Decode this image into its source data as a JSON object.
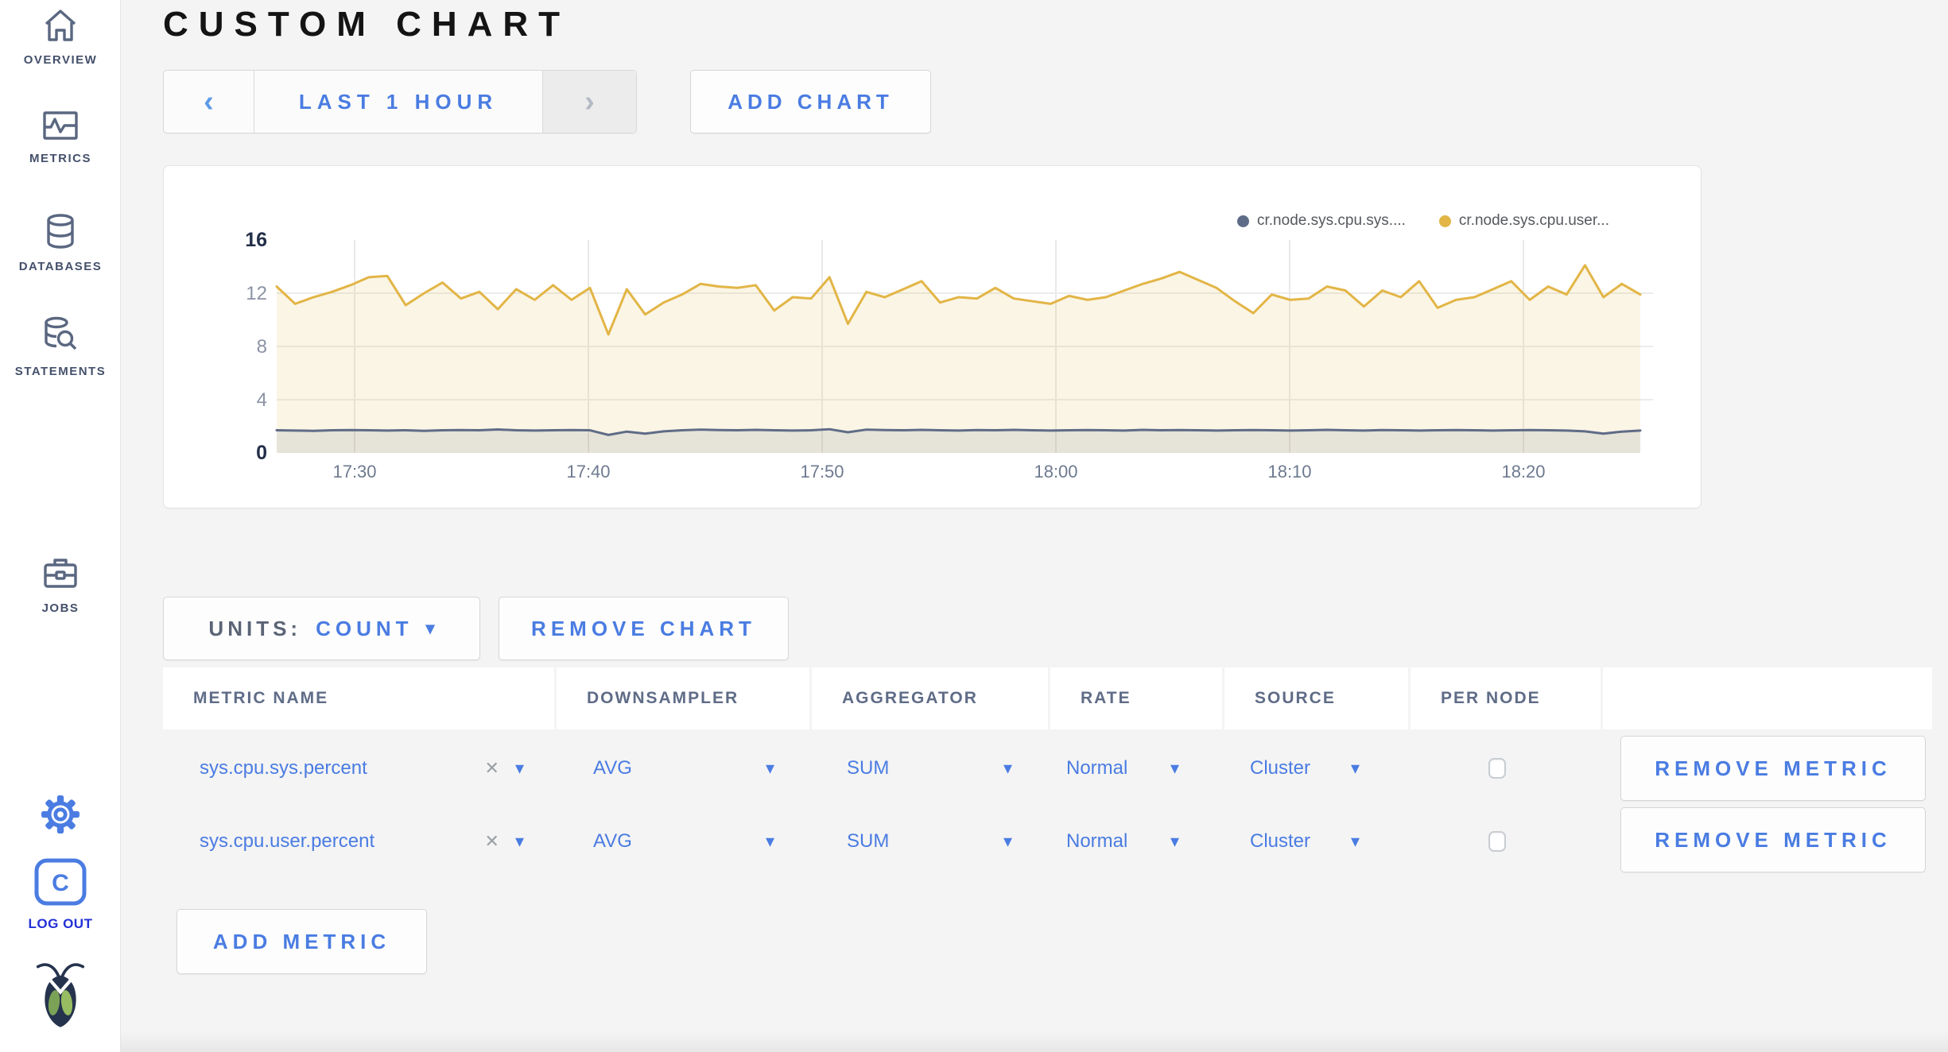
{
  "sidebar": {
    "items": [
      {
        "label": "OVERVIEW"
      },
      {
        "label": "METRICS"
      },
      {
        "label": "DATABASES"
      },
      {
        "label": "STATEMENTS"
      },
      {
        "label": "JOBS"
      }
    ],
    "logout_label": "LOG OUT"
  },
  "header": {
    "title": "CUSTOM CHART"
  },
  "timepicker": {
    "prev": "‹",
    "label": "LAST 1 HOUR",
    "next": "›"
  },
  "buttons": {
    "add_chart": "ADD CHART",
    "units_label": "UNITS:",
    "units_value": "COUNT",
    "remove_chart": "REMOVE CHART",
    "add_metric": "ADD METRIC",
    "remove_metric": "REMOVE METRIC"
  },
  "icons": {
    "caret": "▾",
    "clear": "✕"
  },
  "colors": {
    "accent_blue": "#4a7ce2",
    "logout_blue": "#2230d6",
    "series_sys": "#5f6c87",
    "series_user": "#e2b546",
    "page_bg": "#f4f4f4"
  },
  "table": {
    "headers": [
      "METRIC NAME",
      "DOWNSAMPLER",
      "AGGREGATOR",
      "RATE",
      "SOURCE",
      "PER NODE"
    ],
    "rows": [
      {
        "metric": "sys.cpu.sys.percent",
        "downsampler": "AVG",
        "aggregator": "SUM",
        "rate": "Normal",
        "source": "Cluster",
        "per_node": false
      },
      {
        "metric": "sys.cpu.user.percent",
        "downsampler": "AVG",
        "aggregator": "SUM",
        "rate": "Normal",
        "source": "Cluster",
        "per_node": false
      }
    ]
  },
  "chart_data": {
    "type": "line",
    "title": "",
    "xlabel": "",
    "ylabel": "",
    "ylim": [
      0,
      16
    ],
    "y_ticks": [
      0,
      4,
      8,
      12,
      16
    ],
    "x_ticks": [
      "17:30",
      "17:40",
      "17:50",
      "18:00",
      "18:10",
      "18:20"
    ],
    "x_range_minutes": [
      "17:26",
      "18:25"
    ],
    "grid": true,
    "legend_position": "top-right",
    "series": [
      {
        "name": "cr.node.sys.cpu.sys....",
        "color": "#5f6c87",
        "fill": "rgba(95,108,135,0.13)",
        "values": [
          1.7,
          1.68,
          1.66,
          1.7,
          1.72,
          1.7,
          1.68,
          1.7,
          1.66,
          1.7,
          1.72,
          1.7,
          1.76,
          1.7,
          1.68,
          1.7,
          1.72,
          1.7,
          1.35,
          1.6,
          1.45,
          1.62,
          1.7,
          1.75,
          1.72,
          1.7,
          1.73,
          1.7,
          1.68,
          1.7,
          1.78,
          1.55,
          1.75,
          1.72,
          1.7,
          1.73,
          1.7,
          1.68,
          1.72,
          1.7,
          1.73,
          1.7,
          1.68,
          1.7,
          1.72,
          1.7,
          1.68,
          1.73,
          1.7,
          1.72,
          1.7,
          1.68,
          1.7,
          1.72,
          1.7,
          1.68,
          1.7,
          1.73,
          1.7,
          1.68,
          1.72,
          1.7,
          1.68,
          1.7,
          1.72,
          1.7,
          1.68,
          1.7,
          1.72,
          1.7,
          1.68,
          1.62,
          1.45,
          1.6,
          1.68
        ]
      },
      {
        "name": "cr.node.sys.cpu.user...",
        "color": "#e2b546",
        "fill": "rgba(226,181,70,0.14)",
        "values": [
          12.5,
          11.2,
          11.7,
          12.1,
          12.6,
          13.2,
          13.3,
          11.1,
          12.0,
          12.8,
          11.6,
          12.1,
          10.8,
          12.3,
          11.5,
          12.6,
          11.5,
          12.4,
          8.9,
          12.3,
          10.4,
          11.3,
          11.9,
          12.7,
          12.5,
          12.4,
          12.6,
          10.7,
          11.7,
          11.6,
          13.2,
          9.7,
          12.1,
          11.7,
          12.3,
          12.9,
          11.3,
          11.7,
          11.6,
          12.4,
          11.6,
          11.4,
          11.2,
          11.8,
          11.5,
          11.7,
          12.2,
          12.7,
          13.1,
          13.6,
          13.0,
          12.4,
          11.4,
          10.5,
          11.9,
          11.5,
          11.6,
          12.5,
          12.2,
          11.0,
          12.2,
          11.7,
          12.9,
          10.9,
          11.5,
          11.7,
          12.3,
          12.9,
          11.5,
          12.5,
          11.9,
          14.1,
          11.7,
          12.7,
          11.9
        ]
      }
    ]
  }
}
